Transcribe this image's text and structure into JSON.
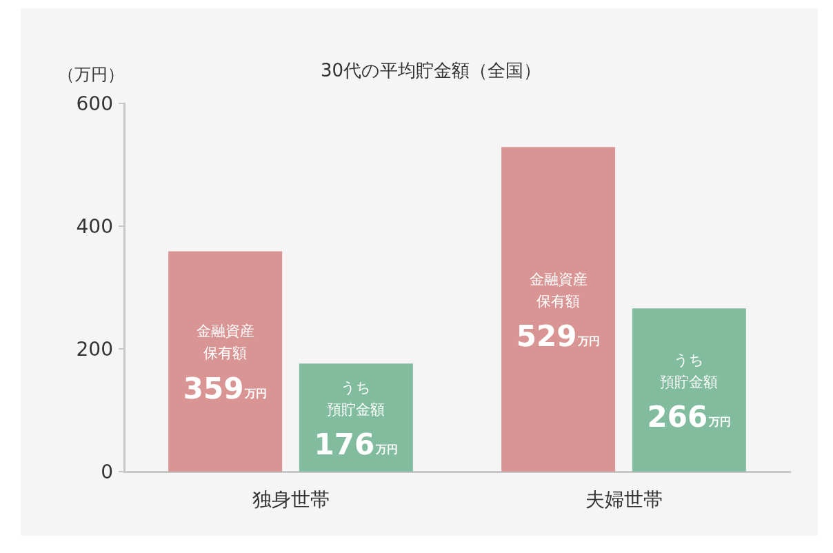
{
  "chart_data": {
    "type": "bar",
    "title": "30代の平均貯金額（全国）",
    "ylabel": "（万円）",
    "categories": [
      "独身世帯",
      "夫婦世帯"
    ],
    "series": [
      {
        "name": "金融資産保有額",
        "color": "#d99594",
        "values": [
          359,
          529
        ],
        "value_labels": [
          "359万円",
          "529万円"
        ]
      },
      {
        "name": "うち預貯金額",
        "color": "#82bc9f",
        "values": [
          176,
          266
        ],
        "value_labels": [
          "176万円",
          "266万円"
        ]
      }
    ],
    "ylim": [
      0,
      600
    ],
    "yticks": [
      0,
      200,
      400,
      600
    ],
    "grid": false,
    "legend": false
  }
}
